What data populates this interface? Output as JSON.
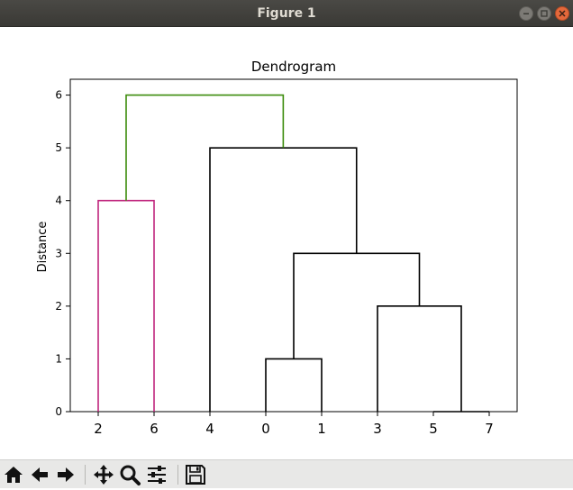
{
  "window": {
    "title": "Figure 1"
  },
  "toolbar": {
    "buttons": [
      "home-icon",
      "back-icon",
      "forward-icon",
      "pan-icon",
      "zoom-icon",
      "configure-icon",
      "save-icon"
    ]
  },
  "colors": {
    "cluster_a": "#c0257d",
    "top_link": "#3c8c0c",
    "default_link": "#000000"
  },
  "chart_data": {
    "type": "dendrogram",
    "title": "Dendrogram",
    "xlabel": "",
    "ylabel": "Distance",
    "ylim": [
      0,
      6.3
    ],
    "yticks": [
      0,
      1,
      2,
      3,
      4,
      5,
      6
    ],
    "leaf_order": [
      "2",
      "6",
      "4",
      "0",
      "1",
      "3",
      "5",
      "7"
    ],
    "leaf_positions": [
      5,
      15,
      25,
      35,
      45,
      55,
      65,
      75
    ],
    "xlim": [
      0,
      80
    ],
    "links": [
      {
        "x": [
          65,
          65,
          75,
          75
        ],
        "y": [
          0,
          0,
          0,
          0
        ],
        "color": "#000000"
      },
      {
        "x": [
          35,
          35,
          45,
          45
        ],
        "y": [
          0,
          1,
          1,
          0
        ],
        "color": "#000000"
      },
      {
        "x": [
          55,
          55,
          70,
          70
        ],
        "y": [
          0,
          2,
          2,
          0
        ],
        "color": "#000000"
      },
      {
        "x": [
          40,
          40,
          62.5,
          62.5
        ],
        "y": [
          1,
          3,
          3,
          2
        ],
        "color": "#000000"
      },
      {
        "x": [
          5,
          5,
          15,
          15
        ],
        "y": [
          0,
          4,
          4,
          0
        ],
        "color": "#c0257d"
      },
      {
        "x": [
          25,
          25,
          51.25,
          51.25
        ],
        "y": [
          0,
          5,
          5,
          3
        ],
        "color": "#000000"
      },
      {
        "x": [
          10,
          10,
          38.125,
          38.125
        ],
        "y": [
          4,
          6,
          6,
          5
        ],
        "color": "#3c8c0c"
      }
    ],
    "grid": false
  }
}
